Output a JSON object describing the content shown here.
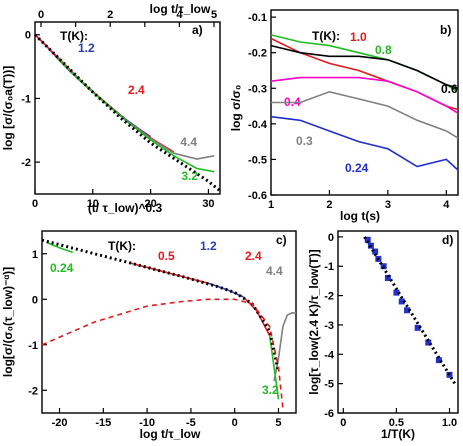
{
  "figure": {
    "panels": [
      {
        "id": "a",
        "tag": "a)",
        "legend_title": "T(K):",
        "chart_data": {
          "type": "line",
          "xlabel": "(t/ τ_low)^0.3",
          "ylabel": "log [σ/(σ₀a(T))]",
          "top_xlabel": "log t/τ_low",
          "xlim": [
            0,
            32
          ],
          "ylim": [
            -2.5,
            0.2
          ],
          "xticks": [
            0,
            10,
            20,
            30
          ],
          "yticks": [
            0,
            -1,
            -2
          ],
          "top_xticks": [
            "0",
            "1",
            "2",
            "3",
            "4",
            "5"
          ],
          "series": [
            {
              "name": "1.2",
              "color": "#2a3eb1",
              "x": [
                0,
                2,
                4,
                6,
                8,
                10,
                12,
                14,
                16,
                18,
                20
              ],
              "y": [
                0,
                -0.18,
                -0.38,
                -0.57,
                -0.74,
                -0.9,
                -1.05,
                -1.2,
                -1.35,
                -1.48,
                -1.6
              ]
            },
            {
              "name": "2.4",
              "color": "#e31a1c",
              "x": [
                0,
                4,
                8,
                12,
                16,
                20,
                24
              ],
              "y": [
                0,
                -0.36,
                -0.73,
                -1.05,
                -1.36,
                -1.62,
                -1.84
              ]
            },
            {
              "name": "4.4",
              "color": "#808080",
              "x": [
                4,
                8,
                12,
                16,
                20,
                24,
                28,
                31
              ],
              "y": [
                -0.38,
                -0.74,
                -1.06,
                -1.36,
                -1.63,
                -1.86,
                -1.95,
                -1.9
              ]
            },
            {
              "name": "3.2",
              "color": "#22bb22",
              "x": [
                4,
                8,
                12,
                16,
                20,
                24,
                28,
                31
              ],
              "y": [
                -0.38,
                -0.74,
                -1.06,
                -1.37,
                -1.65,
                -1.9,
                -2.1,
                -2.15
              ]
            },
            {
              "name": "",
              "color": "#000000",
              "dotted": true,
              "x": [
                0,
                5,
                10,
                15,
                20,
                25,
                30,
                32
              ],
              "y": [
                0,
                -0.45,
                -0.9,
                -1.32,
                -1.7,
                -2.0,
                -2.3,
                -2.45
              ]
            }
          ]
        }
      },
      {
        "id": "b",
        "tag": "b)",
        "legend_title": "T(K):",
        "chart_data": {
          "type": "line",
          "xlabel": "log t(s)",
          "ylabel": "log σ/σ₀",
          "xlim": [
            1,
            4.2
          ],
          "ylim": [
            -0.6,
            -0.08
          ],
          "xticks": [
            1,
            2,
            3,
            4
          ],
          "yticks": [
            -0.1,
            -0.2,
            -0.3,
            -0.4,
            -0.5,
            -0.6
          ],
          "series": [
            {
              "name": "1.0",
              "color": "#e31a1c",
              "x": [
                1.0,
                1.5,
                2.0,
                2.5,
                3.0,
                3.5,
                4.0,
                4.2
              ],
              "y": [
                -0.16,
                -0.2,
                -0.23,
                -0.25,
                -0.28,
                -0.31,
                -0.35,
                -0.36
              ]
            },
            {
              "name": "0.8",
              "color": "#22bb22",
              "x": [
                1.0,
                1.5,
                2.0,
                2.5,
                3.0,
                3.5,
                4.0,
                4.2
              ],
              "y": [
                -0.15,
                -0.17,
                -0.18,
                -0.2,
                -0.22,
                -0.25,
                -0.29,
                -0.31
              ]
            },
            {
              "name": "0.6",
              "color": "#000000",
              "x": [
                1.0,
                1.5,
                2.0,
                2.5,
                3.0,
                3.5,
                4.0,
                4.2
              ],
              "y": [
                -0.18,
                -0.2,
                -0.21,
                -0.21,
                -0.22,
                -0.25,
                -0.29,
                -0.3
              ]
            },
            {
              "name": "0.4",
              "color": "#ff00cc",
              "x": [
                1.0,
                1.5,
                2.0,
                2.5,
                3.0,
                3.5,
                4.0,
                4.2
              ],
              "y": [
                -0.28,
                -0.27,
                -0.27,
                -0.27,
                -0.28,
                -0.31,
                -0.35,
                -0.37
              ]
            },
            {
              "name": "0.3",
              "color": "#808080",
              "x": [
                1.0,
                1.5,
                2.0,
                2.5,
                3.0,
                3.5,
                4.0,
                4.2
              ],
              "y": [
                -0.34,
                -0.34,
                -0.31,
                -0.33,
                -0.35,
                -0.39,
                -0.42,
                -0.44
              ]
            },
            {
              "name": "0.24",
              "color": "#1f2fcc",
              "x": [
                1.0,
                1.5,
                2.0,
                2.5,
                3.0,
                3.5,
                4.0,
                4.2
              ],
              "y": [
                -0.38,
                -0.39,
                -0.42,
                -0.45,
                -0.47,
                -0.52,
                -0.5,
                -0.53
              ]
            }
          ]
        }
      },
      {
        "id": "c",
        "tag": "c)",
        "legend_title": "T(K):",
        "chart_data": {
          "type": "line",
          "xlabel": "log t/τ_low",
          "ylabel": "log[σ/(σ₀(τ_low)⁻ᵅ)]",
          "xlim": [
            -22,
            7
          ],
          "ylim": [
            -2.5,
            1.5
          ],
          "xticks": [
            -20,
            -15,
            -10,
            -5,
            0,
            5
          ],
          "yticks": [
            1,
            0,
            -1,
            -2
          ],
          "series": [
            {
              "name": "0.24",
              "color": "#22bb22",
              "x": [
                -21.5,
                -20,
                -18.5
              ],
              "y": [
                1.25,
                1.13,
                1.03
              ]
            },
            {
              "name": "0.5",
              "color": "#e31a1c",
              "x": [
                -12,
                -9,
                -6,
                -3
              ],
              "y": [
                0.8,
                0.65,
                0.5,
                0.35
              ]
            },
            {
              "name": "1.2",
              "color": "#2a3eb1",
              "x": [
                -3,
                -1,
                1
              ],
              "y": [
                0.35,
                0.22,
                0.05
              ]
            },
            {
              "name": "2.4",
              "color": "#e31a1c",
              "x": [
                1,
                2.5,
                4
              ],
              "y": [
                0.05,
                -0.25,
                -0.8
              ]
            },
            {
              "name": "4.4",
              "color": "#808080",
              "x": [
                4.5,
                5,
                5.5,
                6,
                6.5,
                7
              ],
              "y": [
                -1.8,
                -1.3,
                -0.6,
                -0.35,
                -0.3,
                -0.3
              ]
            },
            {
              "name": "3.2",
              "color": "#22bb22",
              "x": [
                4,
                4.5,
                5
              ],
              "y": [
                -0.8,
                -1.5,
                -2.2
              ]
            },
            {
              "name": "",
              "color": "#000000",
              "dotted": true,
              "x": [
                -22,
                -18,
                -14,
                -10,
                -6,
                -2,
                0,
                2,
                4,
                5
              ],
              "y": [
                1.3,
                1.1,
                0.9,
                0.7,
                0.5,
                0.28,
                0.15,
                -0.1,
                -0.7,
                -1.6
              ]
            },
            {
              "name": "",
              "color": "#e31a1c",
              "dashed": true,
              "x": [
                -22,
                -16,
                -10,
                -6,
                -3,
                -1,
                0,
                2,
                4,
                5,
                5.5
              ],
              "y": [
                -1.0,
                -0.5,
                -0.15,
                -0.05,
                0,
                0,
                0,
                -0.1,
                -0.6,
                -1.5,
                -2.4
              ]
            }
          ]
        }
      },
      {
        "id": "d",
        "tag": "d)",
        "chart_data": {
          "type": "scatter",
          "xlabel": "1/T(K)",
          "ylabel": "log[τ_low(2.4 K)/τ_low(T)]",
          "xlim": [
            -0.05,
            1.08
          ],
          "ylim": [
            -6,
            0.2
          ],
          "xticks": [
            0,
            0.5,
            1
          ],
          "xtick_labels": [
            "0",
            "0.5",
            "1.0"
          ],
          "yticks": [
            0,
            -1,
            -2,
            -3,
            -4,
            -5,
            -6
          ],
          "series": [
            {
              "name": "",
              "color": "#2233cc",
              "x": [
                0.23,
                0.26,
                0.3,
                0.33,
                0.38,
                0.42,
                0.5,
                0.55,
                0.6,
                0.7,
                0.8,
                0.9,
                1.0
              ],
              "y": [
                -0.1,
                -0.3,
                -0.5,
                -0.75,
                -1.0,
                -1.4,
                -1.9,
                -2.2,
                -2.5,
                -3.1,
                -3.6,
                -4.2,
                -4.7
              ]
            },
            {
              "name": "",
              "color": "#000000",
              "dotted": true,
              "x": [
                0.2,
                1.05
              ],
              "y": [
                0,
                -5.0
              ]
            }
          ]
        }
      }
    ]
  }
}
